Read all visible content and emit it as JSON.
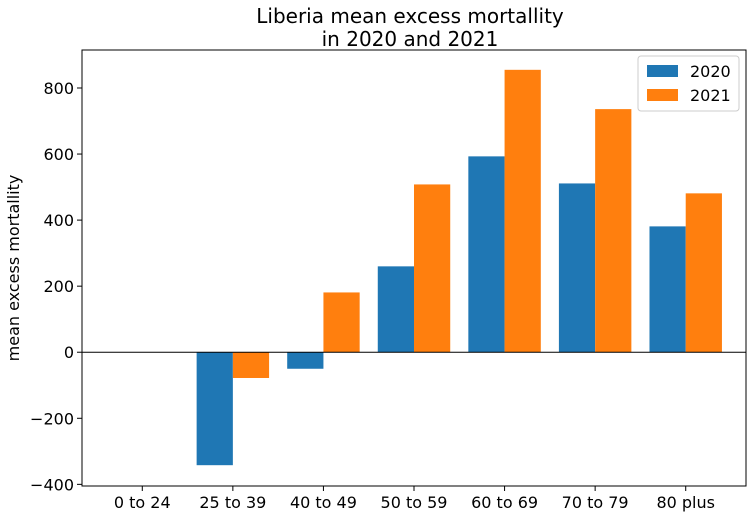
{
  "chart_data": {
    "type": "bar",
    "title_lines": [
      "Liberia mean excess mortallity",
      "in 2020 and 2021"
    ],
    "xlabel": "",
    "ylabel": "mean excess mortallity",
    "categories": [
      "0 to 24",
      "25 to 39",
      "40 to 49",
      "50 to 59",
      "60 to 69",
      "70 to 79",
      "80 plus"
    ],
    "series": [
      {
        "name": "2020",
        "color": "#1f77b4",
        "values": [
          0,
          -342,
          -50,
          260,
          593,
          511,
          381
        ]
      },
      {
        "name": "2021",
        "color": "#ff7f0e",
        "values": [
          0,
          -78,
          181,
          508,
          855,
          736,
          481
        ]
      }
    ],
    "ylim": [
      -405,
      915
    ],
    "yticks": [
      -400,
      -200,
      0,
      200,
      400,
      600,
      800
    ],
    "ytick_labels": [
      "−400",
      "−200",
      "0",
      "200",
      "400",
      "600",
      "800"
    ],
    "zero_line": true,
    "grid": false,
    "legend_position": "top-right"
  }
}
